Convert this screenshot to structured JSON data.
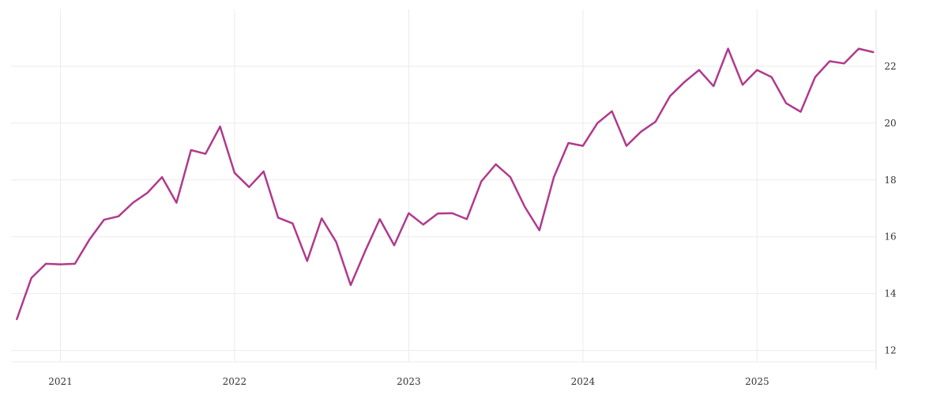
{
  "chart_data": {
    "type": "line",
    "title": "",
    "xlabel": "",
    "ylabel": "",
    "grid": true,
    "legend": "none",
    "color": "#b03a8c",
    "y_axis_side": "right",
    "xlim": [
      "2020-10",
      "2025-09"
    ],
    "ylim": [
      11.6,
      24.0
    ],
    "x_ticks": [
      "2021",
      "2022",
      "2023",
      "2024",
      "2025"
    ],
    "y_ticks": [
      12,
      14,
      16,
      18,
      20,
      22
    ],
    "x": [
      "2020-10",
      "2020-11",
      "2020-12",
      "2021-01",
      "2021-02",
      "2021-03",
      "2021-04",
      "2021-05",
      "2021-06",
      "2021-07",
      "2021-08",
      "2021-09",
      "2021-10",
      "2021-11",
      "2021-12",
      "2022-01",
      "2022-02",
      "2022-03",
      "2022-04",
      "2022-05",
      "2022-06",
      "2022-07",
      "2022-08",
      "2022-09",
      "2022-10",
      "2022-11",
      "2022-12",
      "2023-01",
      "2023-02",
      "2023-03",
      "2023-04",
      "2023-05",
      "2023-06",
      "2023-07",
      "2023-08",
      "2023-09",
      "2023-10",
      "2023-11",
      "2023-12",
      "2024-01",
      "2024-02",
      "2024-03",
      "2024-04",
      "2024-05",
      "2024-06",
      "2024-07",
      "2024-08",
      "2024-09",
      "2024-10",
      "2024-11",
      "2024-12",
      "2025-01",
      "2025-02",
      "2025-03",
      "2025-04",
      "2025-05",
      "2025-06",
      "2025-07",
      "2025-08",
      "2025-09"
    ],
    "series": [
      {
        "values": [
          13.1,
          14.55,
          15.05,
          15.03,
          15.05,
          15.9,
          16.6,
          16.72,
          17.2,
          17.55,
          18.1,
          17.2,
          19.05,
          18.92,
          19.88,
          18.25,
          17.75,
          18.3,
          16.67,
          16.47,
          15.15,
          16.65,
          15.82,
          14.3,
          15.5,
          16.62,
          15.7,
          16.83,
          16.43,
          16.82,
          16.83,
          16.62,
          17.95,
          18.55,
          18.1,
          17.05,
          16.23,
          18.1,
          19.3,
          19.2,
          20.0,
          20.42,
          19.2,
          19.7,
          20.05,
          20.95,
          21.45,
          21.87,
          21.3,
          22.62,
          21.35,
          21.87,
          21.62,
          20.7,
          20.4,
          21.62,
          22.18,
          22.1,
          22.62,
          22.5
        ]
      }
    ]
  }
}
